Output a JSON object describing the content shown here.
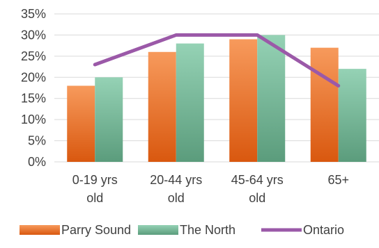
{
  "chart_data": {
    "type": "bar",
    "categories": [
      [
        "0-19 yrs",
        "old"
      ],
      [
        "20-44 yrs",
        "old"
      ],
      [
        "45-64 yrs",
        "old"
      ],
      [
        "65+"
      ]
    ],
    "series": [
      {
        "name": "Parry Sound",
        "kind": "bar",
        "values": [
          18,
          26,
          29,
          27
        ],
        "color": "#f0823c"
      },
      {
        "name": "The North",
        "kind": "bar",
        "values": [
          20,
          28,
          30,
          22
        ],
        "color": "#7cbf9e"
      },
      {
        "name": "Ontario",
        "kind": "line",
        "values": [
          23,
          30,
          30,
          18
        ],
        "color": "#9b59a8"
      }
    ],
    "ylim": [
      0,
      35
    ],
    "yticks": [
      "0%",
      "5%",
      "10%",
      "15%",
      "20%",
      "25%",
      "30%",
      "35%"
    ],
    "grid": true,
    "legend_position": "bottom",
    "title": "",
    "xlabel": "",
    "ylabel": ""
  }
}
